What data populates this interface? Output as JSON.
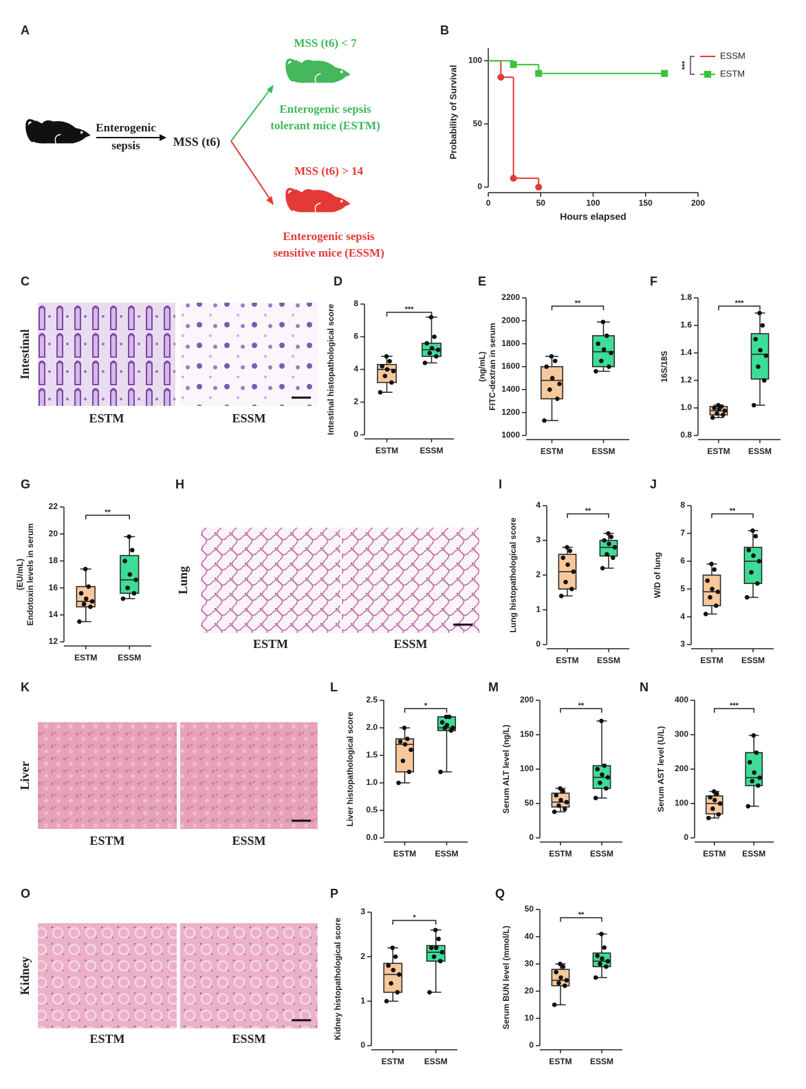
{
  "diagram": {
    "panel": "A",
    "arrow_label": [
      "Enterogenic",
      "sepsis"
    ],
    "mss": "MSS (t6)",
    "tolerant_condition": "MSS (t6) < 7",
    "tolerant_label": [
      "Enterogenic sepsis",
      "tolerant mice (ESTM)"
    ],
    "sensitive_condition": "MSS (t6) > 14",
    "sensitive_label": [
      "Enterogenic sepsis",
      "sensitive mice (ESSM)"
    ]
  },
  "micrographs": [
    {
      "panel": "C",
      "tissue": "Intestinal",
      "labels": [
        "ESTM",
        "ESSM"
      ]
    },
    {
      "panel": "H",
      "tissue": "Lung",
      "labels": [
        "ESTM",
        "ESSM"
      ]
    },
    {
      "panel": "K",
      "tissue": "Liver",
      "labels": [
        "ESTM",
        "ESSM"
      ]
    },
    {
      "panel": "O",
      "tissue": "Kidney",
      "labels": [
        "ESTM",
        "ESSM"
      ]
    }
  ],
  "chart_data": [
    {
      "type": "survival",
      "panel": "B",
      "xlabel": "Hours elapsed",
      "ylabel": "Probability of Survival",
      "xlim": [
        0,
        200
      ],
      "xticks": [
        0,
        50,
        100,
        150,
        200
      ],
      "ylim": [
        0,
        110
      ],
      "yticks": [
        0,
        50,
        100
      ],
      "significance": "***",
      "series": [
        {
          "name": "ESSM",
          "color": "#e53935",
          "marker": "circle",
          "x": [
            0,
            12,
            24,
            48
          ],
          "values": [
            100,
            87,
            7,
            0
          ]
        },
        {
          "name": "ESTM",
          "color": "#3cc13c",
          "marker": "square",
          "x": [
            0,
            24,
            48,
            168
          ],
          "values": [
            100,
            97,
            90,
            90
          ]
        }
      ]
    },
    {
      "type": "box",
      "panel": "D",
      "ylabel": "Intestinal histopathological score",
      "categories": [
        "ESTM",
        "ESSM"
      ],
      "significance": "***",
      "ylim": [
        0,
        8
      ],
      "yticks": [
        0,
        2,
        4,
        6,
        8
      ],
      "boxes": [
        {
          "color": "#f7c89b",
          "min": 2.6,
          "q1": 3.2,
          "median": 4.0,
          "q3": 4.3,
          "max": 4.8,
          "points": [
            2.6,
            3.2,
            3.6,
            3.9,
            4.0,
            4.2,
            4.5,
            4.8
          ]
        },
        {
          "color": "#3ddc97",
          "min": 4.4,
          "q1": 4.8,
          "median": 5.2,
          "q3": 5.6,
          "max": 7.2,
          "points": [
            4.4,
            4.8,
            5.0,
            5.2,
            5.3,
            5.6,
            6.0,
            7.2
          ]
        }
      ]
    },
    {
      "type": "box",
      "panel": "E",
      "ylabel": [
        "FITC-dextran in serum",
        "(ng/mL)"
      ],
      "categories": [
        "ESTM",
        "ESSM"
      ],
      "significance": "**",
      "ylim": [
        1000,
        2200
      ],
      "yticks": [
        1000,
        1200,
        1400,
        1600,
        1800,
        2000,
        2200
      ],
      "boxes": [
        {
          "color": "#f7c89b",
          "min": 1130,
          "q1": 1320,
          "median": 1480,
          "q3": 1600,
          "max": 1690,
          "points": [
            1130,
            1320,
            1400,
            1450,
            1500,
            1600,
            1650,
            1690
          ]
        },
        {
          "color": "#3ddc97",
          "min": 1560,
          "q1": 1600,
          "median": 1730,
          "q3": 1870,
          "max": 1990,
          "points": [
            1560,
            1600,
            1650,
            1720,
            1750,
            1800,
            1870,
            1990
          ]
        }
      ]
    },
    {
      "type": "box",
      "panel": "F",
      "ylabel": "16S/18S",
      "categories": [
        "ESTM",
        "ESSM"
      ],
      "significance": "***",
      "ylim": [
        0.8,
        1.8
      ],
      "yticks": [
        0.8,
        {
          "value": 1,
          "label": "1.0"
        },
        1.2,
        1.4,
        1.6,
        1.8
      ],
      "boxes": [
        {
          "color": "#f7c89b",
          "min": 0.93,
          "q1": 0.95,
          "median": 0.98,
          "q3": 1.01,
          "max": 1.02,
          "points": [
            0.93,
            0.95,
            0.96,
            0.98,
            0.99,
            1.0,
            1.01,
            1.02
          ]
        },
        {
          "color": "#3ddc97",
          "min": 1.02,
          "q1": 1.21,
          "median": 1.39,
          "q3": 1.54,
          "max": 1.69,
          "points": [
            1.02,
            1.2,
            1.3,
            1.38,
            1.42,
            1.5,
            1.6,
            1.69
          ]
        }
      ]
    },
    {
      "type": "box",
      "panel": "G",
      "ylabel": [
        "Endotoxin levels in serum",
        "(EU/mL)"
      ],
      "categories": [
        "ESTM",
        "ESSM"
      ],
      "significance": "**",
      "ylim": [
        12,
        22
      ],
      "yticks": [
        12,
        14,
        16,
        18,
        20,
        22
      ],
      "boxes": [
        {
          "color": "#f7c89b",
          "min": 13.5,
          "q1": 14.6,
          "median": 15.0,
          "q3": 16.1,
          "max": 17.4,
          "points": [
            13.5,
            14.6,
            14.8,
            15.0,
            15.2,
            15.6,
            16.1,
            17.4
          ]
        },
        {
          "color": "#3ddc97",
          "min": 15.2,
          "q1": 15.6,
          "median": 16.6,
          "q3": 18.4,
          "max": 19.8,
          "points": [
            15.2,
            15.6,
            16.0,
            16.6,
            17.0,
            18.0,
            18.8,
            19.8
          ]
        }
      ]
    },
    {
      "type": "box",
      "panel": "I",
      "ylabel": "Lung histopathological score",
      "categories": [
        "ESTM",
        "ESSM"
      ],
      "significance": "**",
      "ylim": [
        0,
        4
      ],
      "yticks": [
        0,
        1,
        2,
        3,
        4
      ],
      "boxes": [
        {
          "color": "#f7c89b",
          "min": 1.4,
          "q1": 1.6,
          "median": 2.1,
          "q3": 2.6,
          "max": 2.8,
          "points": [
            1.4,
            1.6,
            1.8,
            2.1,
            2.3,
            2.5,
            2.7,
            2.8
          ]
        },
        {
          "color": "#3ddc97",
          "min": 2.2,
          "q1": 2.55,
          "median": 2.8,
          "q3": 3.0,
          "max": 3.2,
          "points": [
            2.2,
            2.5,
            2.6,
            2.8,
            2.9,
            3.0,
            3.1,
            3.2
          ]
        }
      ]
    },
    {
      "type": "box",
      "panel": "J",
      "ylabel": "W/D of lung",
      "categories": [
        "ESTM",
        "ESSM"
      ],
      "significance": "**",
      "ylim": [
        3,
        8
      ],
      "yticks": [
        3,
        4,
        5,
        6,
        7,
        8
      ],
      "boxes": [
        {
          "color": "#f7c89b",
          "min": 4.1,
          "q1": 4.4,
          "median": 4.9,
          "q3": 5.5,
          "max": 5.9,
          "points": [
            4.1,
            4.4,
            4.7,
            4.9,
            5.0,
            5.3,
            5.7,
            5.9
          ]
        },
        {
          "color": "#3ddc97",
          "min": 4.7,
          "q1": 5.2,
          "median": 6.0,
          "q3": 6.5,
          "max": 7.1,
          "points": [
            4.7,
            5.2,
            5.6,
            6.0,
            6.2,
            6.4,
            6.9,
            7.1
          ]
        }
      ]
    },
    {
      "type": "box",
      "panel": "L",
      "ylabel": "Liver histopathological score",
      "categories": [
        "ESTM",
        "ESSM"
      ],
      "significance": "*",
      "ylim": [
        0,
        2.5
      ],
      "yticks": [
        {
          "value": 0,
          "label": "0.0"
        },
        0.5,
        {
          "value": 1,
          "label": "1.0"
        },
        1.5,
        {
          "value": 2,
          "label": "2.0"
        },
        2.5
      ],
      "boxes": [
        {
          "color": "#f7c89b",
          "min": 1.0,
          "q1": 1.2,
          "median": 1.7,
          "q3": 1.8,
          "max": 2.0,
          "points": [
            1.0,
            1.2,
            1.4,
            1.6,
            1.7,
            1.75,
            1.8,
            2.0
          ]
        },
        {
          "color": "#3ddc97",
          "min": 1.2,
          "q1": 1.95,
          "median": 2.0,
          "q3": 2.2,
          "max": 2.2,
          "points": [
            1.2,
            1.95,
            2.0,
            2.0,
            2.05,
            2.1,
            2.2,
            2.2
          ]
        }
      ]
    },
    {
      "type": "box",
      "panel": "M",
      "ylabel": "Serum ALT level (ng/L)",
      "categories": [
        "ESTM",
        "ESSM"
      ],
      "significance": "**",
      "ylim": [
        0,
        200
      ],
      "yticks": [
        0,
        50,
        100,
        150,
        200
      ],
      "boxes": [
        {
          "color": "#f7c89b",
          "min": 38,
          "q1": 45,
          "median": 52,
          "q3": 65,
          "max": 72,
          "points": [
            38,
            42,
            47,
            52,
            55,
            62,
            68,
            72
          ]
        },
        {
          "color": "#3ddc97",
          "min": 58,
          "q1": 72,
          "median": 88,
          "q3": 105,
          "max": 170,
          "points": [
            58,
            72,
            80,
            88,
            92,
            100,
            105,
            170
          ]
        }
      ]
    },
    {
      "type": "box",
      "panel": "N",
      "ylabel": "Serum AST level (U/L)",
      "categories": [
        "ESTM",
        "ESSM"
      ],
      "significance": "***",
      "ylim": [
        0,
        400
      ],
      "yticks": [
        0,
        100,
        200,
        300,
        400
      ],
      "boxes": [
        {
          "color": "#f7c89b",
          "min": 58,
          "q1": 70,
          "median": 100,
          "q3": 122,
          "max": 135,
          "points": [
            58,
            68,
            85,
            100,
            110,
            118,
            128,
            135
          ]
        },
        {
          "color": "#3ddc97",
          "min": 92,
          "q1": 152,
          "median": 175,
          "q3": 248,
          "max": 298,
          "points": [
            92,
            152,
            165,
            175,
            190,
            220,
            248,
            298
          ]
        }
      ]
    },
    {
      "type": "box",
      "panel": "P",
      "ylabel": "Kidney histopathological score",
      "categories": [
        "ESTM",
        "ESSM"
      ],
      "significance": "*",
      "ylim": [
        0,
        3
      ],
      "yticks": [
        0,
        1,
        2,
        3
      ],
      "boxes": [
        {
          "color": "#f7c89b",
          "min": 1.0,
          "q1": 1.2,
          "median": 1.6,
          "q3": 1.85,
          "max": 2.2,
          "points": [
            1.0,
            1.2,
            1.4,
            1.6,
            1.7,
            1.8,
            2.0,
            2.2
          ]
        },
        {
          "color": "#3ddc97",
          "min": 1.2,
          "q1": 1.9,
          "median": 2.1,
          "q3": 2.25,
          "max": 2.6,
          "points": [
            1.2,
            1.9,
            2.0,
            2.1,
            2.2,
            2.2,
            2.4,
            2.6
          ]
        }
      ]
    },
    {
      "type": "box",
      "panel": "Q",
      "ylabel": "Serum BUN level (mmol/L)",
      "categories": [
        "ESTM",
        "ESSM"
      ],
      "significance": "**",
      "ylim": [
        0,
        50
      ],
      "yticks": [
        0,
        10,
        20,
        30,
        40,
        50
      ],
      "boxes": [
        {
          "color": "#f7c89b",
          "min": 15,
          "q1": 22,
          "median": 24,
          "q3": 28,
          "max": 30,
          "points": [
            15,
            22,
            23,
            24,
            25,
            27,
            29,
            30
          ]
        },
        {
          "color": "#3ddc97",
          "min": 25,
          "q1": 29,
          "median": 31,
          "q3": 34,
          "max": 41,
          "points": [
            25,
            29,
            30,
            31,
            32,
            33,
            36,
            41
          ]
        }
      ]
    }
  ]
}
